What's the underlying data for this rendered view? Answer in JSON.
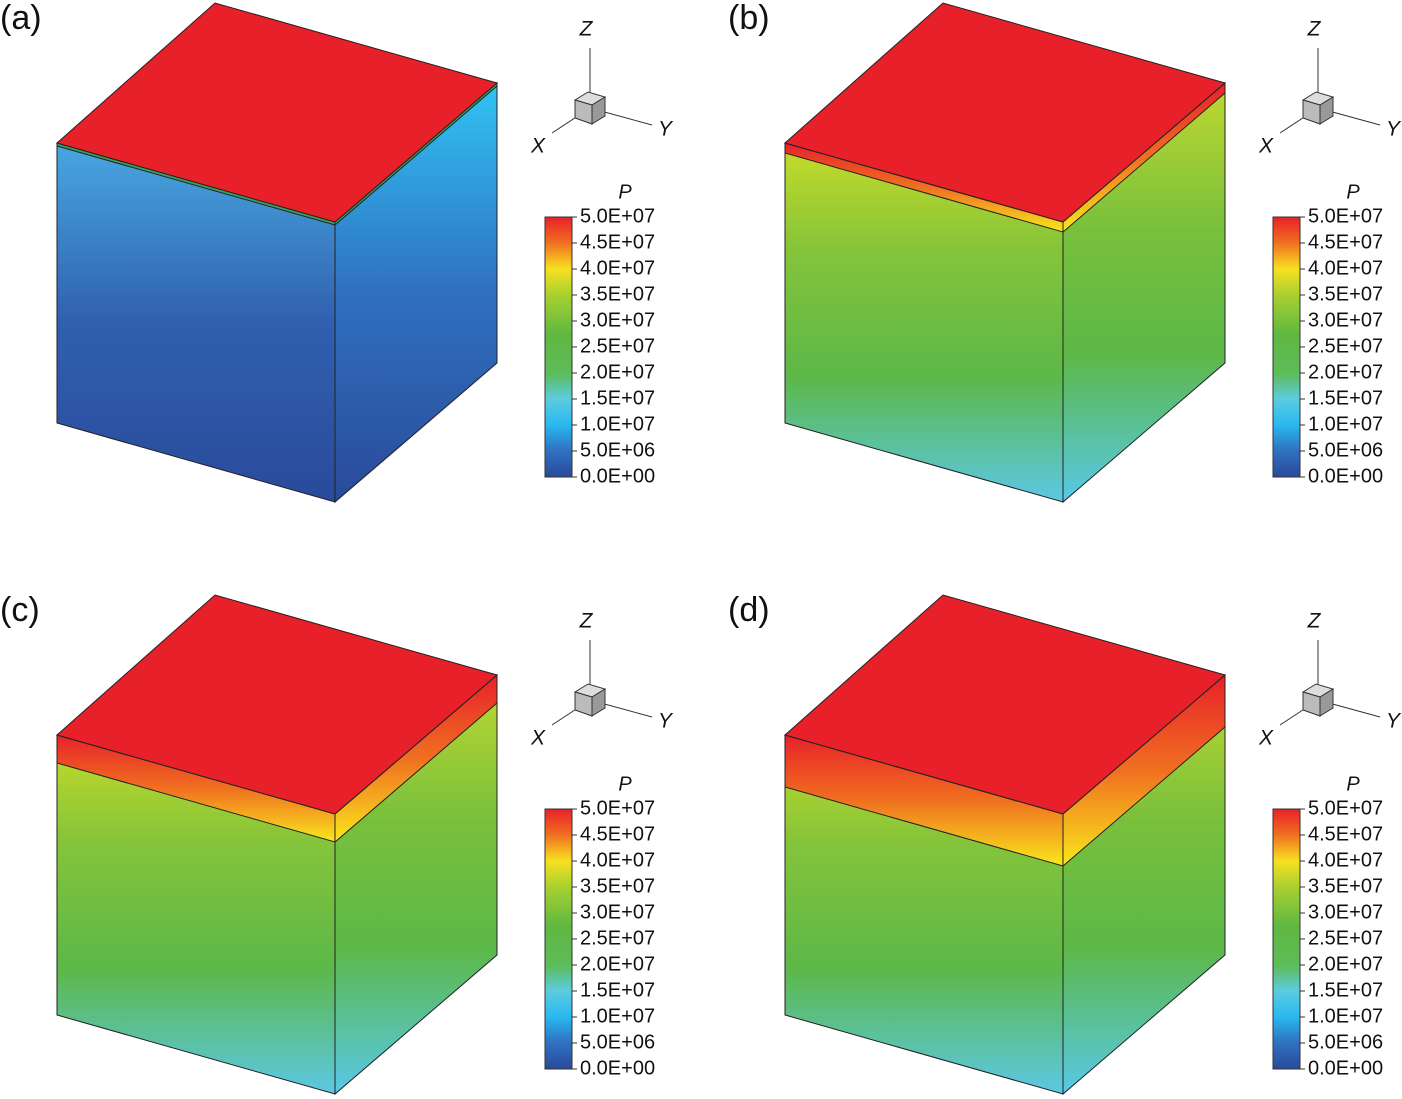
{
  "panels": [
    {
      "label": "(a)",
      "axes": {
        "z": "Z",
        "x": "X",
        "y": "Y"
      },
      "legend": {
        "title": "P",
        "ticks": [
          "5.0E+07",
          "4.5E+07",
          "4.0E+07",
          "3.5E+07",
          "3.0E+07",
          "2.5E+07",
          "2.0E+07",
          "1.5E+07",
          "1.0E+07",
          "5.0E+06",
          "0.0E+00"
        ]
      }
    },
    {
      "label": "(b)",
      "axes": {
        "z": "Z",
        "x": "X",
        "y": "Y"
      },
      "legend": {
        "title": "P",
        "ticks": [
          "5.0E+07",
          "4.5E+07",
          "4.0E+07",
          "3.5E+07",
          "3.0E+07",
          "2.5E+07",
          "2.0E+07",
          "1.5E+07",
          "1.0E+07",
          "5.0E+06",
          "0.0E+00"
        ]
      }
    },
    {
      "label": "(c)",
      "axes": {
        "z": "Z",
        "x": "X",
        "y": "Y"
      },
      "legend": {
        "title": "P",
        "ticks": [
          "5.0E+07",
          "4.5E+07",
          "4.0E+07",
          "3.5E+07",
          "3.0E+07",
          "2.5E+07",
          "2.0E+07",
          "1.5E+07",
          "1.0E+07",
          "5.0E+06",
          "0.0E+00"
        ]
      }
    },
    {
      "label": "(d)",
      "axes": {
        "z": "Z",
        "x": "X",
        "y": "Y"
      },
      "legend": {
        "title": "P",
        "ticks": [
          "5.0E+07",
          "4.5E+07",
          "4.0E+07",
          "3.5E+07",
          "3.0E+07",
          "2.5E+07",
          "2.0E+07",
          "1.5E+07",
          "1.0E+07",
          "5.0E+06",
          "0.0E+00"
        ]
      }
    }
  ]
}
